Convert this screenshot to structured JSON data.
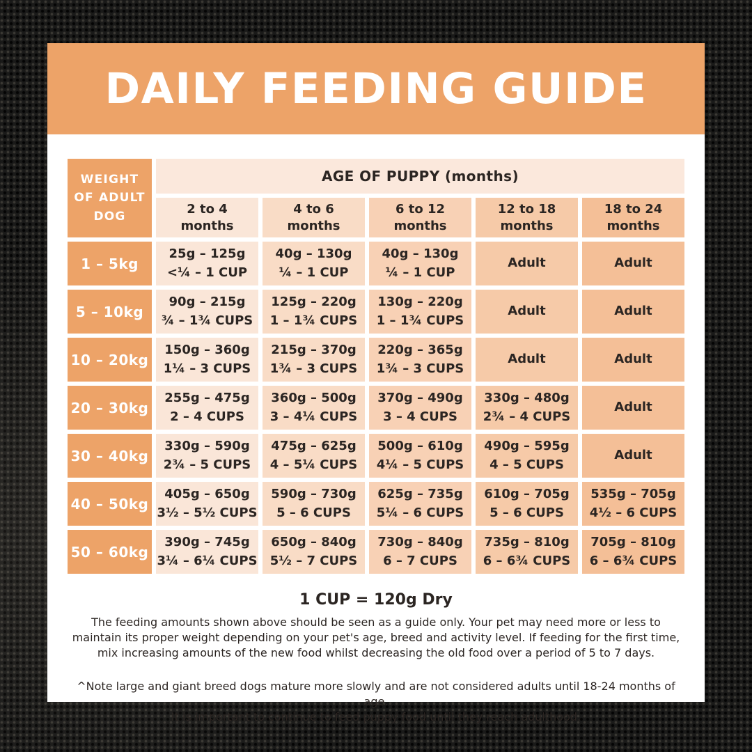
{
  "title": "DAILY FEEDING GUIDE",
  "table": {
    "corner_header": "WEIGHT\nOF ADULT\nDOG",
    "age_band": "AGE OF PUPPY (months)",
    "age_columns": [
      "2 to 4\nmonths",
      "4 to 6\nmonths",
      "6 to 12\nmonths",
      "12 to 18\nmonths",
      "18 to 24\nmonths"
    ],
    "rows": [
      {
        "weight": "1 – 5kg",
        "cells": [
          [
            "25g – 125g",
            "<¼ – 1 CUP"
          ],
          [
            "40g – 130g",
            "¼ – 1 CUP"
          ],
          [
            "40g – 130g",
            "¼ – 1 CUP"
          ],
          [
            "Adult"
          ],
          [
            "Adult"
          ]
        ]
      },
      {
        "weight": "5 – 10kg",
        "cells": [
          [
            "90g – 215g",
            "¾ – 1¾ CUPS"
          ],
          [
            "125g – 220g",
            "1 – 1¾ CUPS"
          ],
          [
            "130g – 220g",
            "1 – 1¾ CUPS"
          ],
          [
            "Adult"
          ],
          [
            "Adult"
          ]
        ]
      },
      {
        "weight": "10 – 20kg",
        "cells": [
          [
            "150g – 360g",
            "1¼ – 3 CUPS"
          ],
          [
            "215g – 370g",
            "1¾ – 3 CUPS"
          ],
          [
            "220g – 365g",
            "1¾ – 3 CUPS"
          ],
          [
            "Adult"
          ],
          [
            "Adult"
          ]
        ]
      },
      {
        "weight": "20 – 30kg",
        "cells": [
          [
            "255g – 475g",
            "2 – 4 CUPS"
          ],
          [
            "360g – 500g",
            "3 – 4¼ CUPS"
          ],
          [
            "370g – 490g",
            "3 – 4 CUPS"
          ],
          [
            "330g – 480g",
            "2¾ – 4 CUPS"
          ],
          [
            "Adult"
          ]
        ]
      },
      {
        "weight": "30 – 40kg",
        "cells": [
          [
            "330g – 590g",
            "2¾ – 5 CUPS"
          ],
          [
            "475g – 625g",
            "4 – 5¼ CUPS"
          ],
          [
            "500g – 610g",
            "4¼ – 5 CUPS"
          ],
          [
            "490g – 595g",
            "4 – 5 CUPS"
          ],
          [
            "Adult"
          ]
        ]
      },
      {
        "weight": "40 – 50kg",
        "cells": [
          [
            "405g – 650g",
            "3½ – 5½ CUPS"
          ],
          [
            "590g – 730g",
            "5 – 6 CUPS"
          ],
          [
            "625g – 735g",
            "5¼ – 6 CUPS"
          ],
          [
            "610g – 705g",
            "5 – 6 CUPS"
          ],
          [
            "535g – 705g",
            "4½ – 6 CUPS"
          ]
        ]
      },
      {
        "weight": "50 – 60kg",
        "cells": [
          [
            "390g – 745g",
            "3¼ – 6¼ CUPS"
          ],
          [
            "650g – 840g",
            "5½ – 7 CUPS"
          ],
          [
            "730g – 840g",
            "6 – 7 CUPS"
          ],
          [
            "735g – 810g",
            "6 – 6¾ CUPS"
          ],
          [
            "705g – 810g",
            "6 – 6¾ CUPS"
          ]
        ]
      }
    ]
  },
  "footer": {
    "cup_note": "1 CUP = 120g Dry",
    "guide_text": "The feeding amounts shown above should be seen as a guide only. Your pet may need more or less to\nmaintain its proper weight depending on your pet's age, breed and activity level. If feeding for the first time,\nmix increasing amounts of the new food whilst decreasing the old food over a period of 5 to 7 days.",
    "breed_note": "^Note large and giant breed dogs mature more slowly and are not considered adults until 18-24 months of age.\nIt is important to continue to feed puppy food until they reach adulthood."
  },
  "colors": {
    "banner_orange": "#EDA368",
    "band_bg": "#FBE8DC",
    "text_dark": "#2B2522",
    "card_bg": "#FFFFFF",
    "column_tints": [
      "#FAE6D8",
      "#F9DCC6",
      "#F8D1B5",
      "#F6CAA8",
      "#F4BF97"
    ]
  }
}
